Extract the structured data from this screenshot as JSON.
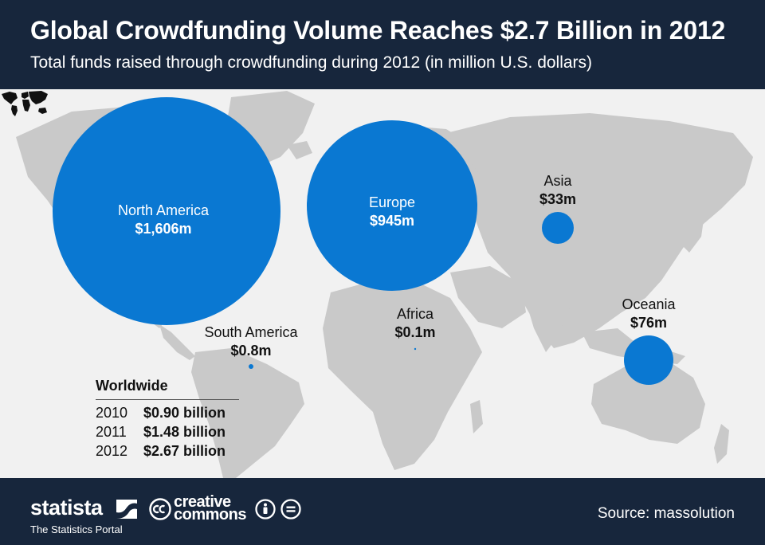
{
  "header": {
    "title": "Global Crowdfunding Volume Reaches $2.7 Billion in 2012",
    "subtitle": "Total funds raised through crowdfunding during 2012 (in million U.S. dollars)"
  },
  "colors": {
    "header_bg": "#17263c",
    "bubble": "#0a78d2",
    "land": "#c9c9c9",
    "background": "#f1f1f1"
  },
  "chart_data": {
    "type": "bubble-map",
    "unit": "million U.S. dollars",
    "regions": [
      {
        "name": "North America",
        "label": "$1,606m",
        "value": 1606
      },
      {
        "name": "Europe",
        "label": "$945m",
        "value": 945
      },
      {
        "name": "Asia",
        "label": "$33m",
        "value": 33
      },
      {
        "name": "Oceania",
        "label": "$76m",
        "value": 76
      },
      {
        "name": "South America",
        "label": "$0.8m",
        "value": 0.8
      },
      {
        "name": "Africa",
        "label": "$0.1m",
        "value": 0.1
      }
    ]
  },
  "worldwide": {
    "title": "Worldwide",
    "rows": [
      {
        "year": "2010",
        "value": "$0.90 billion"
      },
      {
        "year": "2011",
        "value": "$1.48 billion"
      },
      {
        "year": "2012",
        "value": "$2.67 billion"
      }
    ]
  },
  "footer": {
    "brand": "statista",
    "brand_sub": "The Statistics Portal",
    "license_line1": "creative",
    "license_line2": "commons",
    "source": "Source: massolution"
  },
  "icons": [
    "statista-logo-icon",
    "creative-commons-icon",
    "attribution-icon",
    "no-derivatives-icon",
    "world-map-icon"
  ]
}
